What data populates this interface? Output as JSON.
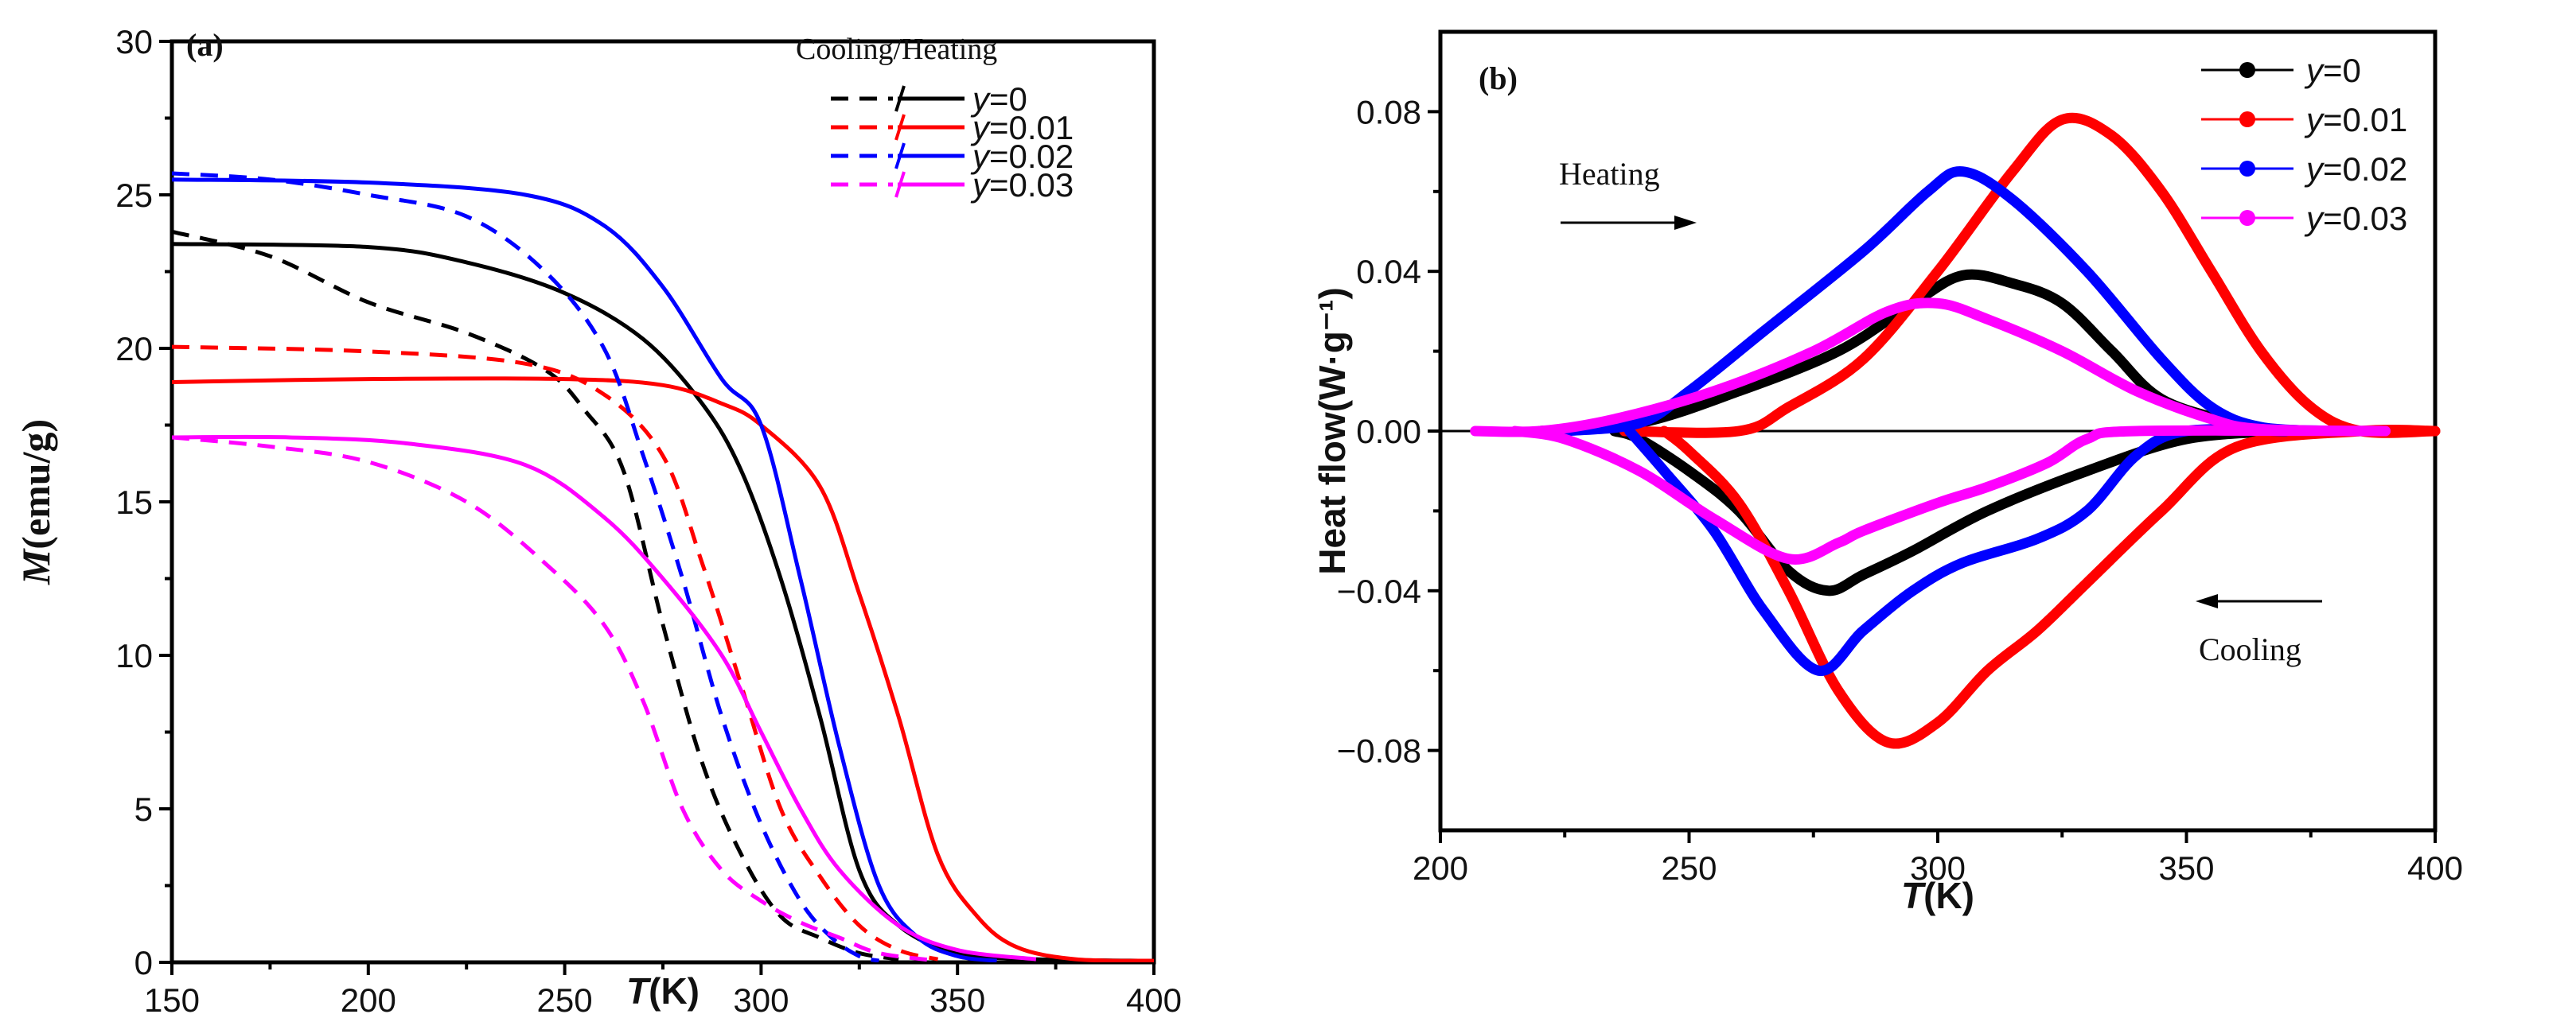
{
  "chart_data": [
    {
      "type": "line",
      "panel_label": "(a)",
      "xlabel_italic": "T",
      "xlabel_rest": "(K)",
      "ylabel_italic": "M",
      "ylabel_rest": "(emu/g)",
      "xlim": [
        150,
        400
      ],
      "ylim": [
        0,
        30
      ],
      "xticks": [
        150,
        200,
        250,
        300,
        350,
        400
      ],
      "yticks": [
        0,
        5,
        10,
        15,
        20,
        25,
        30
      ],
      "legend_title": "Cooling/Heating",
      "legend_placement": "top-right",
      "series": [
        {
          "name": "y=0",
          "label_var": "y",
          "label_val": "=0",
          "color": "#000000",
          "heating": [
            [
              150,
              23.4
            ],
            [
              200,
              23.3
            ],
            [
              225,
              22.8
            ],
            [
              250,
              21.8
            ],
            [
              270,
              20.3
            ],
            [
              285,
              18.2
            ],
            [
              295,
              16
            ],
            [
              305,
              12.5
            ],
            [
              315,
              8
            ],
            [
              325,
              3
            ],
            [
              335,
              1.2
            ],
            [
              350,
              0.3
            ],
            [
              370,
              0.1
            ],
            [
              400,
              0.05
            ]
          ],
          "cooling": [
            [
              150,
              23.8
            ],
            [
              175,
              23
            ],
            [
              200,
              21.5
            ],
            [
              225,
              20.5
            ],
            [
              245,
              19.3
            ],
            [
              255,
              18
            ],
            [
              265,
              16
            ],
            [
              275,
              11
            ],
            [
              285,
              6.5
            ],
            [
              295,
              3.5
            ],
            [
              305,
              1.5
            ],
            [
              315,
              0.8
            ],
            [
              325,
              0.3
            ],
            [
              335,
              0.1
            ]
          ]
        },
        {
          "name": "y=0.01",
          "label_var": "y",
          "label_val": "=0.01",
          "color": "#ff0000",
          "heating": [
            [
              150,
              18.9
            ],
            [
              200,
              19
            ],
            [
              250,
              19
            ],
            [
              275,
              18.8
            ],
            [
              290,
              18.2
            ],
            [
              300,
              17.5
            ],
            [
              315,
              15.5
            ],
            [
              325,
              12
            ],
            [
              335,
              8
            ],
            [
              345,
              3.5
            ],
            [
              355,
              1.5
            ],
            [
              365,
              0.5
            ],
            [
              380,
              0.1
            ],
            [
              400,
              0.05
            ]
          ],
          "cooling": [
            [
              150,
              20.05
            ],
            [
              200,
              19.9
            ],
            [
              240,
              19.5
            ],
            [
              260,
              18.5
            ],
            [
              275,
              16.5
            ],
            [
              285,
              13
            ],
            [
              295,
              9
            ],
            [
              305,
              5
            ],
            [
              315,
              2.8
            ],
            [
              325,
              1.2
            ],
            [
              335,
              0.4
            ],
            [
              345,
              0.1
            ]
          ]
        },
        {
          "name": "y=0.02",
          "label_var": "y",
          "label_val": "=0.02",
          "color": "#0000ff",
          "heating": [
            [
              150,
              25.5
            ],
            [
              200,
              25.4
            ],
            [
              240,
              25
            ],
            [
              260,
              24
            ],
            [
              275,
              22
            ],
            [
              290,
              19
            ],
            [
              300,
              17.5
            ],
            [
              310,
              12.5
            ],
            [
              320,
              7
            ],
            [
              330,
              2.5
            ],
            [
              340,
              0.8
            ],
            [
              350,
              0.2
            ],
            [
              360,
              0.05
            ]
          ],
          "cooling": [
            [
              150,
              25.7
            ],
            [
              175,
              25.5
            ],
            [
              200,
              25
            ],
            [
              225,
              24.3
            ],
            [
              245,
              22.5
            ],
            [
              260,
              20
            ],
            [
              270,
              16.5
            ],
            [
              280,
              12.5
            ],
            [
              290,
              8
            ],
            [
              300,
              4.5
            ],
            [
              310,
              2
            ],
            [
              318,
              0.8
            ],
            [
              325,
              0.2
            ],
            [
              330,
              0.05
            ]
          ]
        },
        {
          "name": "y=0.03",
          "label_var": "y",
          "label_val": "=0.03",
          "color": "#ff00ff",
          "heating": [
            [
              150,
              17.1
            ],
            [
              180,
              17.1
            ],
            [
              210,
              16.9
            ],
            [
              240,
              16.2
            ],
            [
              260,
              14.5
            ],
            [
              275,
              12.5
            ],
            [
              290,
              10
            ],
            [
              300,
              7.5
            ],
            [
              310,
              5
            ],
            [
              320,
              3
            ],
            [
              335,
              1.2
            ],
            [
              350,
              0.4
            ],
            [
              370,
              0.1
            ]
          ],
          "cooling": [
            [
              150,
              17.1
            ],
            [
              175,
              16.8
            ],
            [
              200,
              16.3
            ],
            [
              225,
              15
            ],
            [
              245,
              13
            ],
            [
              260,
              11
            ],
            [
              270,
              8.5
            ],
            [
              280,
              5
            ],
            [
              290,
              3
            ],
            [
              300,
              2
            ],
            [
              310,
              1.3
            ],
            [
              320,
              0.8
            ],
            [
              330,
              0.3
            ],
            [
              345,
              0.05
            ]
          ]
        }
      ]
    },
    {
      "type": "line",
      "panel_label": "(b)",
      "xlabel_italic": "T",
      "xlabel_rest": "(K)",
      "ylabel": "Heat flow(W·g⁻¹)",
      "xlim": [
        200,
        400
      ],
      "ylim": [
        -0.1,
        0.1
      ],
      "xticks": [
        200,
        250,
        300,
        350,
        400
      ],
      "yticks": [
        -0.08,
        -0.04,
        0.0,
        0.04,
        0.08
      ],
      "ytick_labels": [
        "−0.08",
        "−0.04",
        "0.00",
        "0.04",
        "0.08"
      ],
      "xtick_labels": [
        "200",
        "250",
        "300",
        "350",
        "400"
      ],
      "legend_placement": "top-right",
      "annotations": {
        "heating": "Heating",
        "cooling": "Cooling"
      },
      "series": [
        {
          "name": "y=0",
          "label_var": "y",
          "label_val": "=0",
          "color": "#000000",
          "heating": [
            [
              220,
              0
            ],
            [
              240,
              0.002
            ],
            [
              260,
              0.01
            ],
            [
              280,
              0.02
            ],
            [
              295,
              0.032
            ],
            [
              305,
              0.039
            ],
            [
              315,
              0.037
            ],
            [
              325,
              0.032
            ],
            [
              335,
              0.02
            ],
            [
              345,
              0.008
            ],
            [
              360,
              0.002
            ],
            [
              370,
              0
            ],
            [
              380,
              0
            ]
          ],
          "cooling": [
            [
              370,
              0
            ],
            [
              350,
              -0.002
            ],
            [
              330,
              -0.01
            ],
            [
              310,
              -0.02
            ],
            [
              295,
              -0.03
            ],
            [
              285,
              -0.036
            ],
            [
              278,
              -0.04
            ],
            [
              270,
              -0.035
            ],
            [
              260,
              -0.02
            ],
            [
              250,
              -0.01
            ],
            [
              240,
              -0.002
            ],
            [
              235,
              0
            ]
          ]
        },
        {
          "name": "y=0.01",
          "label_var": "y",
          "label_val": "=0.01",
          "color": "#ff0000",
          "heating": [
            [
              237,
              0
            ],
            [
              260,
              0
            ],
            [
              270,
              0.006
            ],
            [
              285,
              0.018
            ],
            [
              300,
              0.04
            ],
            [
              315,
              0.065
            ],
            [
              325,
              0.078
            ],
            [
              335,
              0.074
            ],
            [
              345,
              0.06
            ],
            [
              355,
              0.04
            ],
            [
              365,
              0.02
            ],
            [
              375,
              0.006
            ],
            [
              385,
              0
            ],
            [
              400,
              0
            ]
          ],
          "cooling": [
            [
              400,
              0
            ],
            [
              385,
              0
            ],
            [
              360,
              -0.004
            ],
            [
              345,
              -0.02
            ],
            [
              330,
              -0.038
            ],
            [
              320,
              -0.05
            ],
            [
              310,
              -0.06
            ],
            [
              300,
              -0.073
            ],
            [
              290,
              -0.078
            ],
            [
              280,
              -0.065
            ],
            [
              270,
              -0.04
            ],
            [
              260,
              -0.018
            ],
            [
              250,
              -0.005
            ],
            [
              245,
              0
            ]
          ]
        },
        {
          "name": "y=0.02",
          "label_var": "y",
          "label_val": "=0.02",
          "color": "#0000ff",
          "heating": [
            [
              225,
              0
            ],
            [
              240,
              0.002
            ],
            [
              250,
              0.01
            ],
            [
              265,
              0.025
            ],
            [
              285,
              0.045
            ],
            [
              298,
              0.06
            ],
            [
              305,
              0.065
            ],
            [
              315,
              0.058
            ],
            [
              330,
              0.04
            ],
            [
              345,
              0.018
            ],
            [
              355,
              0.006
            ],
            [
              365,
              0.001
            ],
            [
              380,
              0
            ]
          ],
          "cooling": [
            [
              370,
              0
            ],
            [
              350,
              0
            ],
            [
              340,
              -0.006
            ],
            [
              330,
              -0.02
            ],
            [
              320,
              -0.027
            ],
            [
              305,
              -0.033
            ],
            [
              295,
              -0.04
            ],
            [
              285,
              -0.05
            ],
            [
              276,
              -0.06
            ],
            [
              265,
              -0.045
            ],
            [
              255,
              -0.025
            ],
            [
              245,
              -0.01
            ],
            [
              238,
              0
            ]
          ]
        },
        {
          "name": "y=0.03",
          "label_var": "y",
          "label_val": "=0.03",
          "color": "#ff00ff",
          "heating": [
            [
              207,
              0
            ],
            [
              220,
              0
            ],
            [
              235,
              0.003
            ],
            [
              255,
              0.01
            ],
            [
              275,
              0.02
            ],
            [
              290,
              0.03
            ],
            [
              300,
              0.032
            ],
            [
              310,
              0.028
            ],
            [
              325,
              0.02
            ],
            [
              340,
              0.01
            ],
            [
              355,
              0.003
            ],
            [
              365,
              0.0005
            ],
            [
              390,
              0
            ]
          ],
          "cooling": [
            [
              390,
              0
            ],
            [
              340,
              0
            ],
            [
              330,
              -0.002
            ],
            [
              322,
              -0.008
            ],
            [
              310,
              -0.014
            ],
            [
              300,
              -0.018
            ],
            [
              285,
              -0.025
            ],
            [
              280,
              -0.028
            ],
            [
              270,
              -0.032
            ],
            [
              255,
              -0.022
            ],
            [
              240,
              -0.01
            ],
            [
              225,
              -0.002
            ],
            [
              215,
              0
            ]
          ]
        }
      ]
    }
  ]
}
